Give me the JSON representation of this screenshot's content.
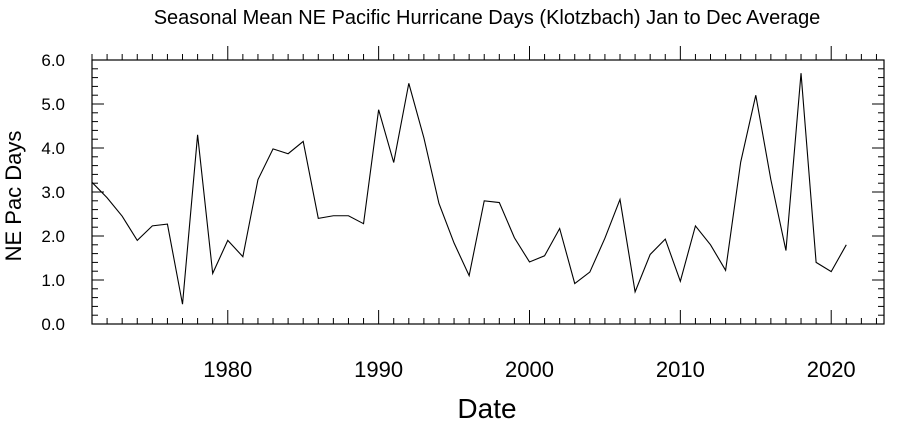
{
  "chart_data": {
    "type": "line",
    "title": "Seasonal Mean NE Pacific Hurricane Days (Klotzbach) Jan to Dec Average",
    "xlabel": "Date",
    "ylabel": "NE Pac Days",
    "xlim": [
      1971,
      2023.5
    ],
    "ylim": [
      0.0,
      6.0
    ],
    "x_ticks": [
      1980,
      1990,
      2000,
      2010,
      2020
    ],
    "x_tick_labels": [
      "1980",
      "1990",
      "2000",
      "2010",
      "2020"
    ],
    "y_ticks": [
      0.0,
      1.0,
      2.0,
      3.0,
      4.0,
      5.0,
      6.0
    ],
    "y_tick_labels": [
      "0.0",
      "1.0",
      "2.0",
      "3.0",
      "4.0",
      "5.0",
      "6.0"
    ],
    "grid": false,
    "line_color": "#000000",
    "x": [
      1971,
      1972,
      1973,
      1974,
      1975,
      1976,
      1977,
      1978,
      1979,
      1980,
      1981,
      1982,
      1983,
      1984,
      1985,
      1986,
      1987,
      1988,
      1989,
      1990,
      1991,
      1992,
      1993,
      1994,
      1995,
      1996,
      1997,
      1998,
      1999,
      2000,
      2001,
      2002,
      2003,
      2004,
      2005,
      2006,
      2007,
      2008,
      2009,
      2010,
      2011,
      2012,
      2013,
      2014,
      2015,
      2016,
      2017,
      2018,
      2019,
      2020,
      2021
    ],
    "values": [
      3.22,
      2.87,
      2.45,
      1.9,
      2.23,
      2.27,
      0.45,
      4.3,
      1.15,
      1.9,
      1.53,
      3.28,
      3.98,
      3.87,
      4.15,
      2.4,
      2.46,
      2.46,
      2.28,
      4.87,
      3.67,
      5.47,
      4.23,
      2.74,
      1.84,
      1.1,
      2.8,
      2.76,
      1.96,
      1.41,
      1.55,
      2.17,
      0.92,
      1.18,
      1.95,
      2.83,
      0.73,
      1.58,
      1.93,
      0.97,
      2.23,
      1.8,
      1.22,
      3.68,
      5.2,
      3.28,
      1.67,
      5.7,
      1.4,
      1.19,
      1.8
    ]
  }
}
